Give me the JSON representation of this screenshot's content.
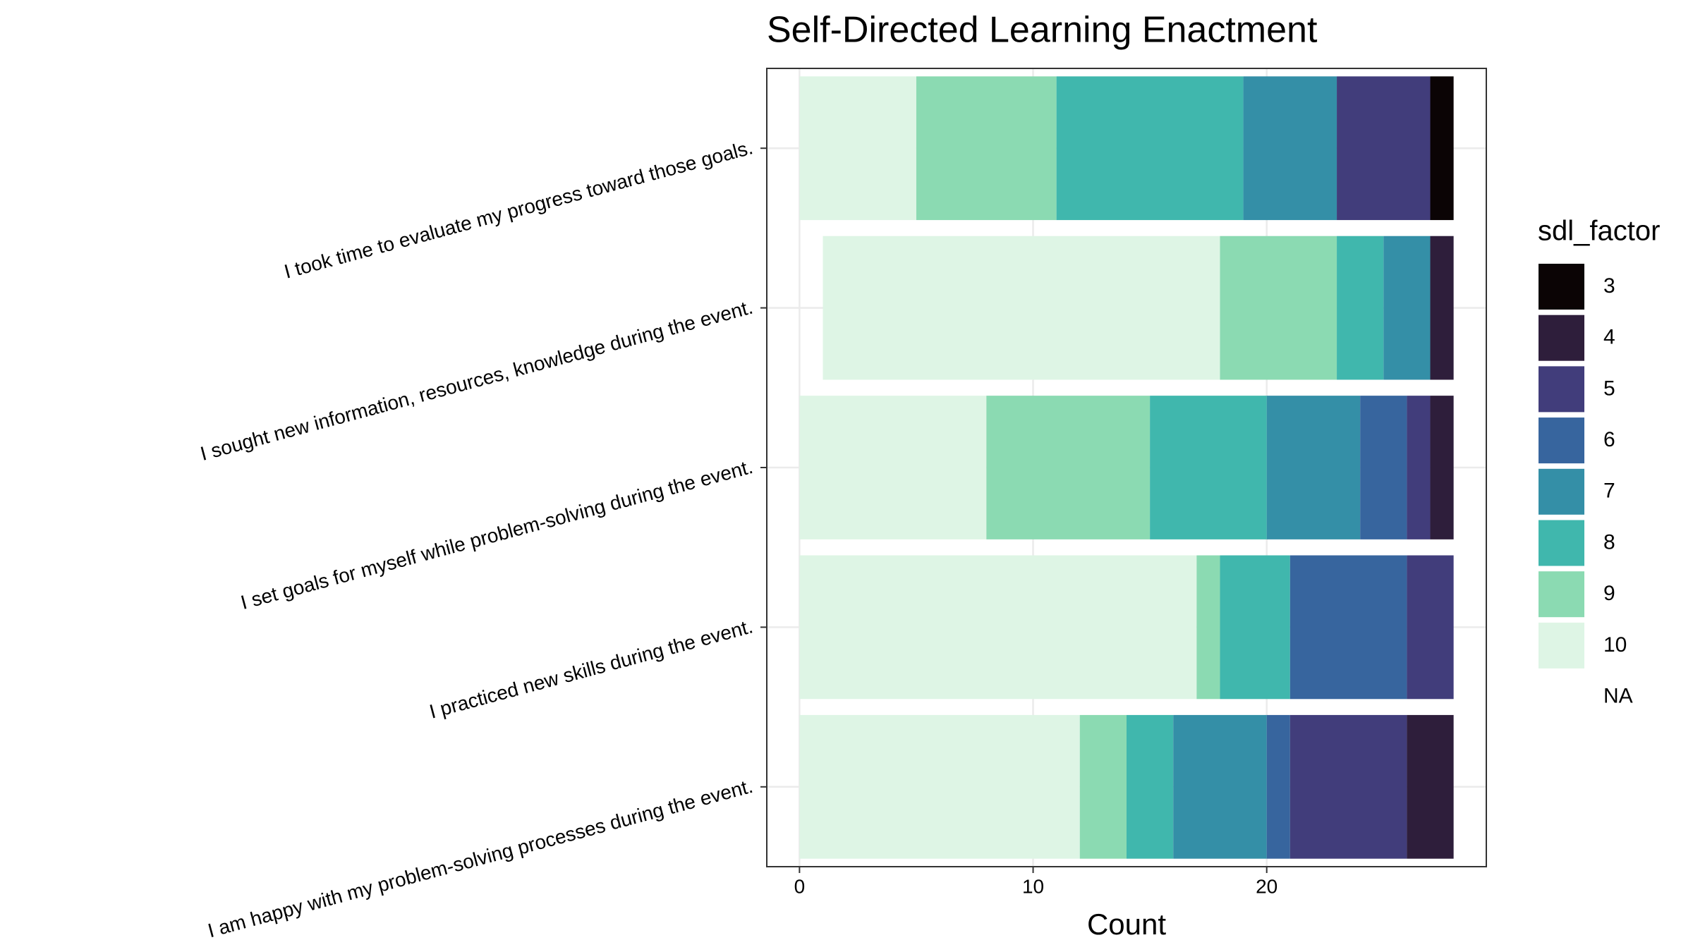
{
  "chart_data": {
    "type": "bar",
    "orientation": "horizontal",
    "stacked": true,
    "title": "Self-Directed Learning Enactment",
    "x_label": "Count",
    "legend_title": "sdl_factor",
    "categories": [
      "I took time to evaluate my progress toward those goals.",
      "I sought new information, resources, knowledge during the event.",
      "I set goals for myself while problem-solving during the event.",
      "I practiced new skills during the event.",
      "I am happy with my problem-solving processes during the event."
    ],
    "series": [
      {
        "name": "3",
        "color": "#0b0405",
        "values": [
          1,
          0,
          0,
          0,
          0
        ]
      },
      {
        "name": "4",
        "color": "#2e1e3b",
        "values": [
          0,
          1,
          1,
          0,
          2
        ]
      },
      {
        "name": "5",
        "color": "#413d7b",
        "values": [
          4,
          0,
          1,
          2,
          5
        ]
      },
      {
        "name": "6",
        "color": "#37659e",
        "values": [
          0,
          0,
          2,
          5,
          1
        ]
      },
      {
        "name": "7",
        "color": "#348fa7",
        "values": [
          4,
          2,
          4,
          0,
          4
        ]
      },
      {
        "name": "8",
        "color": "#40b7ad",
        "values": [
          8,
          2,
          5,
          3,
          2
        ]
      },
      {
        "name": "9",
        "color": "#8bdab2",
        "values": [
          6,
          5,
          7,
          1,
          2
        ]
      },
      {
        "name": "10",
        "color": "#def5e5",
        "values": [
          5,
          17,
          8,
          17,
          12
        ]
      },
      {
        "name": "NA",
        "color": "none",
        "values": [
          0,
          1,
          0,
          0,
          0
        ]
      }
    ],
    "xlim": [
      -1.4,
      29.4
    ],
    "xticks": [
      0,
      10,
      20
    ],
    "grid": true
  }
}
